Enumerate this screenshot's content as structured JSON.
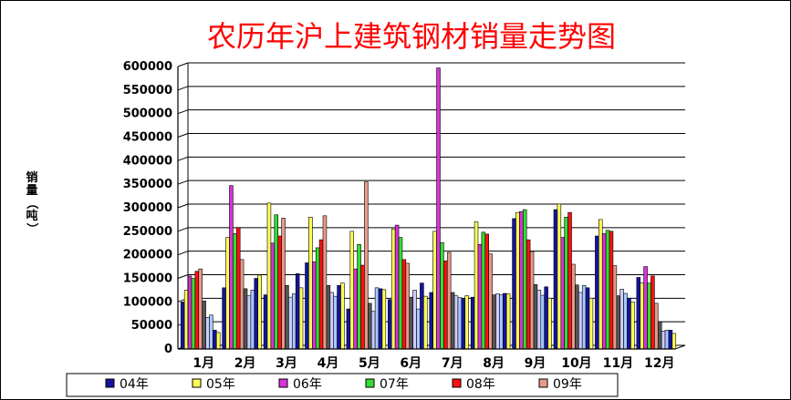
{
  "chart_data": {
    "type": "bar",
    "title": "农历年沪上建筑钢材销量走势图",
    "ylabel": "销量（吨）",
    "xlabel": "",
    "ylim": [
      0,
      600000
    ],
    "yticks": [
      "0",
      "50000",
      "100000",
      "150000",
      "200000",
      "250000",
      "300000",
      "350000",
      "400000",
      "450000",
      "500000",
      "550000",
      "600000"
    ],
    "grid": true,
    "legend_position": "bottom",
    "categories": [
      "1月",
      "2月",
      "3月",
      "4月",
      "5月",
      "6月",
      "7月",
      "8月",
      "9月",
      "10月",
      "11月",
      "12月"
    ],
    "colors": [
      "#1414a0",
      "#ffff55",
      "#d832d8",
      "#33dd33",
      "#ff1111",
      "#e89a8a",
      "#555555",
      "#ccccff",
      "#a8c8ff"
    ],
    "series": [
      {
        "name": "04年",
        "values": [
          100000,
          130000,
          115000,
          183000,
          85000,
          105000,
          120000,
          110000,
          277000,
          296000,
          240000,
          152000
        ]
      },
      {
        "name": "05年",
        "values": [
          125000,
          237000,
          310000,
          280000,
          250000,
          255000,
          250000,
          270000,
          290000,
          308000,
          275000,
          140000
        ]
      },
      {
        "name": "06年",
        "values": [
          155000,
          347000,
          225000,
          185000,
          170000,
          263000,
          597000,
          222000,
          292000,
          237000,
          245000,
          175000
        ]
      },
      {
        "name": "07年",
        "values": [
          150000,
          245000,
          285000,
          215000,
          222000,
          237000,
          226000,
          248000,
          296000,
          280000,
          252000,
          140000
        ]
      },
      {
        "name": "08年",
        "values": [
          165000,
          258000,
          240000,
          232000,
          178000,
          190000,
          187000,
          244000,
          232000,
          290000,
          250000,
          155000
        ]
      },
      {
        "name": "09年",
        "values": [
          170000,
          190000,
          278000,
          283000,
          355000,
          182000,
          205000,
          202000,
          207000,
          180000,
          177000,
          97000
        ]
      },
      {
        "values": [
          102000,
          128000,
          135000,
          135000,
          97000,
          110000,
          120000,
          115000,
          137000,
          136000,
          113000,
          58000
        ]
      },
      {
        "values": [
          67000,
          113000,
          110000,
          120000,
          80000,
          125000,
          113000,
          117000,
          125000,
          120000,
          127000,
          38000
        ]
      },
      {
        "values": [
          72000,
          125000,
          117000,
          112000,
          130000,
          85000,
          109000,
          115000,
          114000,
          135000,
          118000,
          40000
        ]
      },
      {
        "values": [
          40000,
          150000,
          160000,
          135000,
          128000,
          140000,
          107000,
          118000,
          132000,
          130000,
          108000,
          40000
        ]
      },
      {
        "values": [
          35000,
          157000,
          130000,
          140000,
          126000,
          112000,
          113000,
          117000,
          108000,
          108000,
          100000,
          33000
        ]
      }
    ]
  }
}
